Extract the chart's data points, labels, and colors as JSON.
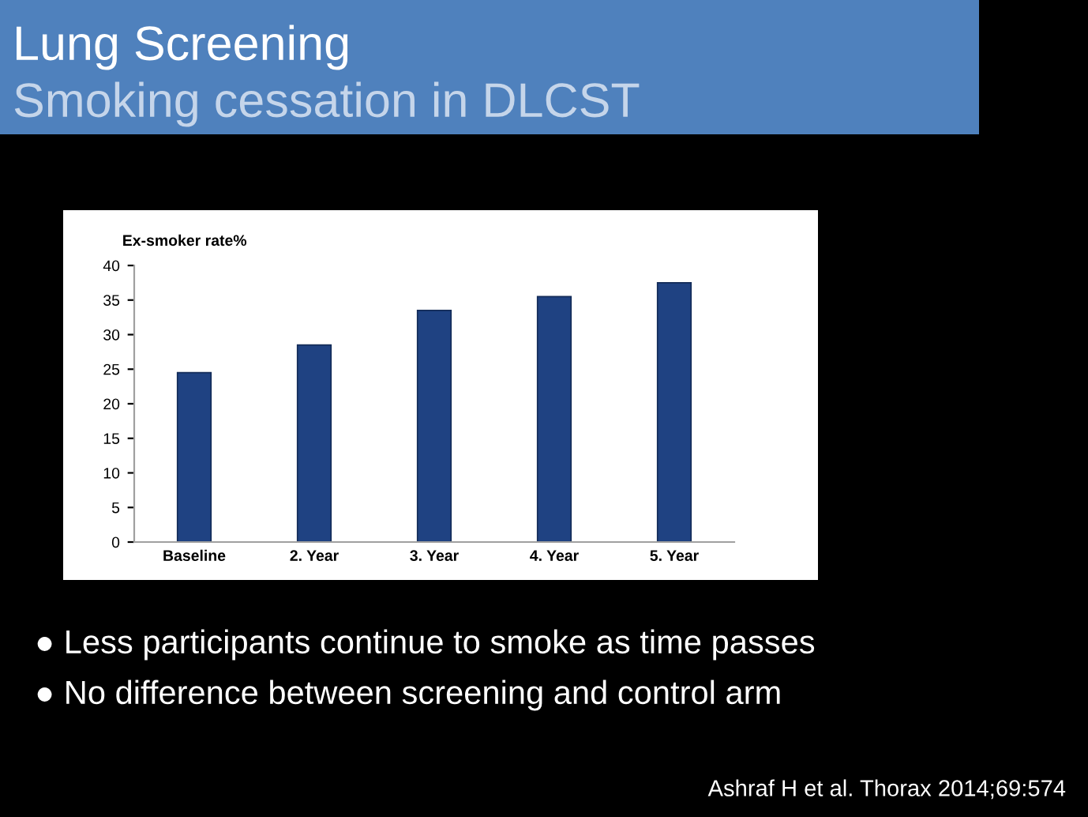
{
  "chart_data": {
    "type": "bar",
    "title": "Lung Screening",
    "subtitle": "Smoking cessation in DLCST",
    "ylabel": "Ex-smoker rate%",
    "categories": [
      "Baseline",
      "2. Year",
      "3. Year",
      "4. Year",
      "5. Year"
    ],
    "values": [
      24.5,
      28.5,
      33.5,
      35.5,
      37.5
    ],
    "color": "#1f4282",
    "ylim": [
      0,
      40
    ],
    "yticks": [
      0,
      5,
      10,
      15,
      20,
      25,
      30,
      35,
      40
    ],
    "grid": false,
    "legend": false,
    "annotations": [
      "● Less participants continue to smoke as time passes",
      "● No difference between screening and control arm",
      "Ashraf H et al. Thorax 2014;69:574"
    ]
  }
}
